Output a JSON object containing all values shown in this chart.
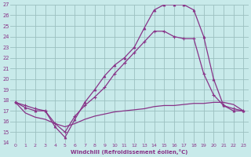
{
  "xlabel": "Windchill (Refroidissement éolien,°C)",
  "xlim": [
    -0.5,
    23.5
  ],
  "ylim": [
    14,
    27
  ],
  "xticks": [
    0,
    1,
    2,
    3,
    4,
    5,
    6,
    7,
    8,
    9,
    10,
    11,
    12,
    13,
    14,
    15,
    16,
    17,
    18,
    19,
    20,
    21,
    22,
    23
  ],
  "yticks": [
    14,
    15,
    16,
    17,
    18,
    19,
    20,
    21,
    22,
    23,
    24,
    25,
    26,
    27
  ],
  "bg_color": "#c8eaea",
  "grid_color": "#9bbfbf",
  "line_color": "#883388",
  "line1_x": [
    0,
    1,
    2,
    3,
    4,
    5,
    6,
    7,
    8,
    9,
    10,
    11,
    12,
    13,
    14,
    15,
    16,
    17,
    18,
    19,
    20,
    21,
    22,
    23
  ],
  "line1_y": [
    17.8,
    17.5,
    17.2,
    17.0,
    15.8,
    15.0,
    16.5,
    17.5,
    18.3,
    19.2,
    20.5,
    21.5,
    22.5,
    23.5,
    24.5,
    24.5,
    24.0,
    23.8,
    23.8,
    20.5,
    18.5,
    17.5,
    17.2,
    17.0
  ],
  "line2_x": [
    0,
    1,
    2,
    3,
    4,
    5,
    6,
    7,
    8,
    9,
    10,
    11,
    12,
    13,
    14,
    15,
    16,
    17,
    18,
    19,
    20,
    21,
    22,
    23
  ],
  "line2_y": [
    17.8,
    17.3,
    17.0,
    17.0,
    15.5,
    14.5,
    16.2,
    17.8,
    19.0,
    20.3,
    21.3,
    22.0,
    23.0,
    24.8,
    26.5,
    27.0,
    27.0,
    27.0,
    26.5,
    24.0,
    20.0,
    17.5,
    17.0,
    17.0
  ],
  "line3_x": [
    0,
    1,
    2,
    3,
    4,
    5,
    6,
    7,
    8,
    9,
    10,
    11,
    12,
    13,
    14,
    15,
    16,
    17,
    18,
    19,
    20,
    21,
    22,
    23
  ],
  "line3_y": [
    17.8,
    16.8,
    16.4,
    16.2,
    15.8,
    15.5,
    15.8,
    16.2,
    16.5,
    16.7,
    16.9,
    17.0,
    17.1,
    17.2,
    17.4,
    17.5,
    17.5,
    17.6,
    17.7,
    17.7,
    17.8,
    17.8,
    17.6,
    17.0
  ]
}
